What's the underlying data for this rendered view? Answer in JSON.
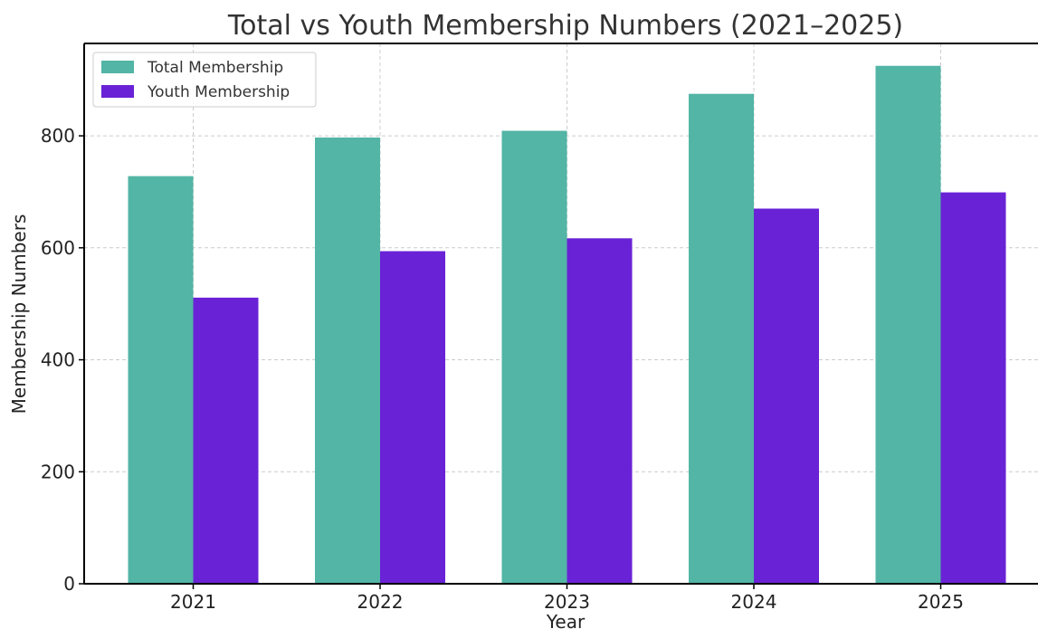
{
  "chart_data": {
    "type": "bar",
    "title": "Total vs Youth Membership Numbers (2021–2025)",
    "xlabel": "Year",
    "ylabel": "Membership Numbers",
    "categories": [
      "2021",
      "2022",
      "2023",
      "2024",
      "2025"
    ],
    "series": [
      {
        "name": "Total Membership",
        "values": [
          728,
          797,
          809,
          875,
          925
        ],
        "color": "#52b5a5"
      },
      {
        "name": "Youth Membership",
        "values": [
          511,
          594,
          617,
          670,
          699
        ],
        "color": "#6a22d6"
      }
    ],
    "ylim": [
      0,
      965
    ],
    "yticks": [
      0,
      200,
      400,
      600,
      800
    ],
    "ytick_labels": [
      "0",
      "200",
      "400",
      "600",
      "800"
    ],
    "grid": true,
    "legend_position": "top-left"
  }
}
